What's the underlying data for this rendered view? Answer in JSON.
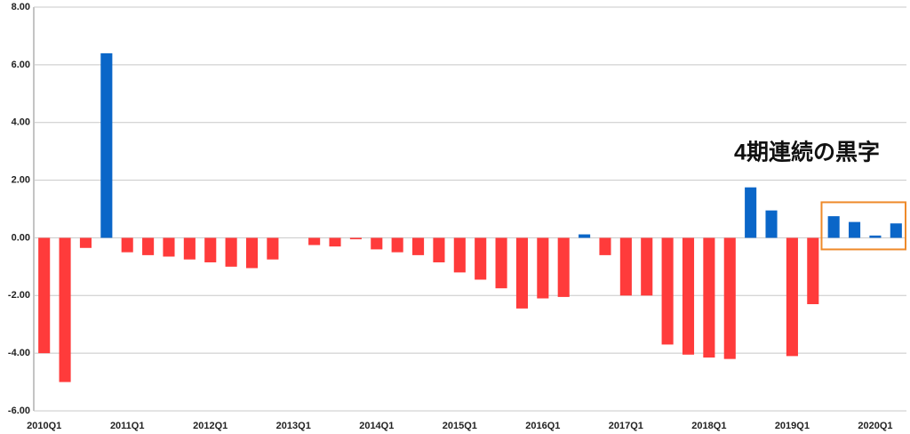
{
  "chart_data": {
    "type": "bar",
    "annotation": "4期連続の黒字",
    "categories": [
      "2010Q1",
      null,
      null,
      null,
      "2011Q1",
      null,
      null,
      null,
      "2012Q1",
      null,
      null,
      null,
      "2013Q1",
      null,
      null,
      null,
      "2014Q1",
      null,
      null,
      null,
      "2015Q1",
      null,
      null,
      null,
      "2016Q1",
      null,
      null,
      null,
      "2017Q1",
      null,
      null,
      null,
      "2018Q1",
      null,
      null,
      null,
      "2019Q1",
      null,
      null,
      null,
      "2020Q1",
      null
    ],
    "values": [
      -4.0,
      -5.0,
      -0.35,
      6.4,
      -0.5,
      -0.6,
      -0.65,
      -0.75,
      -0.85,
      -1.0,
      -1.05,
      -0.75,
      0,
      -0.25,
      -0.3,
      -0.05,
      -0.4,
      -0.5,
      -0.6,
      -0.85,
      -1.2,
      -1.45,
      -1.75,
      -2.45,
      -2.1,
      -2.05,
      0.12,
      -0.6,
      -2.0,
      -2.0,
      -3.7,
      -4.05,
      -4.15,
      -4.2,
      1.75,
      0.95,
      -4.1,
      -2.3,
      0.75,
      0.55,
      0.08,
      0.5
    ],
    "positive_color": "#0a66c8",
    "negative_color": "#ff3b3b",
    "ylim": [
      -6,
      8
    ],
    "yticks": [
      {
        "value": -6,
        "label": "-6.00"
      },
      {
        "value": -4,
        "label": "-4.00"
      },
      {
        "value": -2,
        "label": "-2.00"
      },
      {
        "value": 0,
        "label": "0.00"
      },
      {
        "value": 2,
        "label": "2.00"
      },
      {
        "value": 4,
        "label": "4.00"
      },
      {
        "value": 6,
        "label": "6.00"
      },
      {
        "value": 8,
        "label": "8.00"
      }
    ],
    "grid": true
  }
}
